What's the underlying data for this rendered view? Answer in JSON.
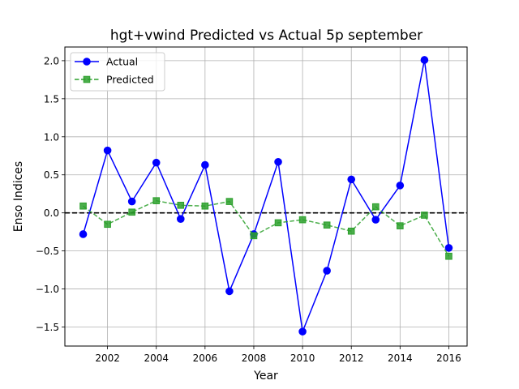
{
  "chart_data": {
    "type": "line",
    "title": "hgt+vwind Predicted vs Actual 5p september",
    "xlabel": "Year",
    "ylabel": "Enso Indices",
    "x": [
      2001,
      2002,
      2003,
      2004,
      2005,
      2006,
      2007,
      2008,
      2009,
      2010,
      2011,
      2012,
      2013,
      2014,
      2015,
      2016
    ],
    "xlim": [
      2000.25,
      2016.75
    ],
    "ylim": [
      -1.75,
      2.18
    ],
    "xticks": [
      2002,
      2004,
      2006,
      2008,
      2010,
      2012,
      2014,
      2016
    ],
    "xtick_labels": [
      "2002",
      "2004",
      "2006",
      "2008",
      "2010",
      "2012",
      "2014",
      "2016"
    ],
    "yticks": [
      -1.5,
      -1.0,
      -0.5,
      0.0,
      0.5,
      1.0,
      1.5,
      2.0
    ],
    "ytick_labels": [
      "−1.5",
      "−1.0",
      "−0.5",
      "0.0",
      "0.5",
      "1.0",
      "1.5",
      "2.0"
    ],
    "grid": true,
    "legend_position": "top-left",
    "reference_line": {
      "y": 0.0,
      "style": "dashed",
      "color": "#000000"
    },
    "series": [
      {
        "name": "Actual",
        "color": "#0000ff",
        "marker": "circle",
        "linestyle": "solid",
        "values": [
          -0.28,
          0.82,
          0.15,
          0.66,
          -0.08,
          0.63,
          -1.03,
          -0.28,
          0.67,
          -1.56,
          -0.76,
          0.44,
          -0.09,
          0.36,
          2.01,
          -0.46
        ]
      },
      {
        "name": "Predicted",
        "color": "#2ca02c",
        "marker": "square",
        "linestyle": "dashed",
        "values": [
          0.09,
          -0.15,
          0.01,
          0.16,
          0.1,
          0.09,
          0.15,
          -0.3,
          -0.13,
          -0.09,
          -0.16,
          -0.24,
          0.08,
          -0.17,
          -0.03,
          -0.57
        ]
      }
    ]
  }
}
